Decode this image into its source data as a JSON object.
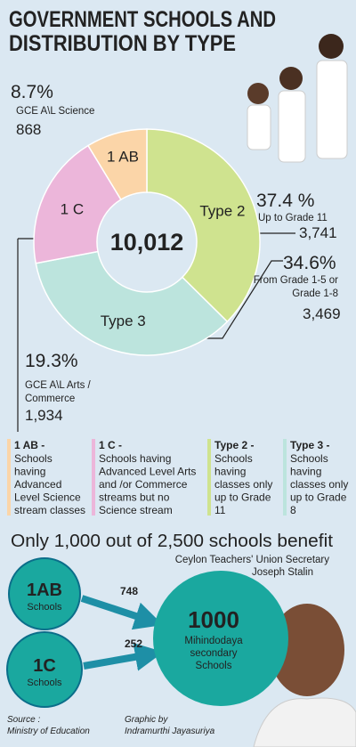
{
  "chart_data": {
    "type": "donut",
    "title": [
      "GOVERNMENT SCHOOLS AND",
      "DISTRIBUTION BY TYPE"
    ],
    "center_label": "10,012",
    "categories": [
      "Type 2",
      "Type 3",
      "1 C",
      "1 AB"
    ],
    "values": [
      37.4,
      34.6,
      19.3,
      8.7
    ],
    "value_labels": [
      "37.4 %",
      "34.6%",
      "19.3%",
      "8.7%"
    ],
    "counts": [
      "3,741",
      "3,469",
      "1,934",
      "868"
    ],
    "descriptions": [
      [
        "Up to Grade 11"
      ],
      [
        "From Grade 1-5 or",
        "Grade 1-8"
      ],
      [
        "GCE A\\L Arts /",
        "Commerce"
      ],
      [
        "GCE A\\L Science"
      ]
    ],
    "colors": [
      "#cfe38f",
      "#bce4dd",
      "#ecb6da",
      "#fbd5a8"
    ]
  },
  "legend": [
    {
      "key": "1 AB -",
      "lines": [
        "Schools",
        "having",
        "Advanced",
        "Level Science",
        "stream classes"
      ]
    },
    {
      "key": "1 C -",
      "lines": [
        "Schools having",
        "Advanced Level Arts",
        "and /or Commerce",
        "streams but no",
        "Science stream"
      ]
    },
    {
      "key": "Type 2 -",
      "lines": [
        "Schools",
        "having",
        "classes only",
        "up to Grade",
        "11"
      ]
    },
    {
      "key": "Type 3 -",
      "lines": [
        "Schools",
        "having",
        "classes only",
        "up to Grade",
        "8"
      ]
    }
  ],
  "headline": "Only 1,000 out of 2,500 schools benefit",
  "attribution": [
    "Ceylon Teachers' Union Secretary",
    "Joseph Stalin"
  ],
  "flow": {
    "sources": [
      {
        "label": "1AB",
        "sub": "Schools",
        "value": "748"
      },
      {
        "label": "1C",
        "sub": "Schools",
        "value": "252"
      }
    ],
    "target": {
      "value": "1000",
      "lines": [
        "Mihindodaya",
        "secondary",
        "Schools"
      ]
    }
  },
  "footer": {
    "source": [
      "Source :",
      "Ministry of Education"
    ],
    "credit": [
      "Graphic by",
      "Indramurthi Jayasuriya"
    ]
  }
}
